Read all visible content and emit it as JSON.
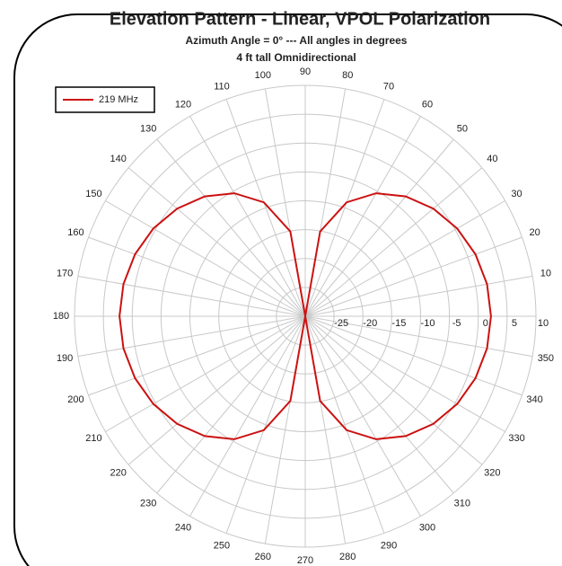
{
  "chart_data": {
    "type": "polar",
    "title": "Elevation Pattern - Linear, VPOL Polarization",
    "subtitle": "Azimuth Angle = 0° ---  All angles in degrees",
    "annotation": "4 ft tall Omnidirectional",
    "theta": [
      0,
      10,
      20,
      30,
      40,
      50,
      60,
      70,
      80,
      90,
      100,
      110,
      120,
      130,
      140,
      150,
      160,
      170,
      180,
      190,
      200,
      210,
      220,
      230,
      240,
      250,
      260,
      270,
      280,
      290,
      300,
      310,
      320,
      330,
      340,
      350
    ],
    "series": [
      {
        "name": "219 MHz",
        "color": "#cc1111",
        "values": [
          2.2,
          2.0,
          1.4,
          0.4,
          -1.0,
          -2.9,
          -5.4,
          -9.0,
          -15.1,
          -30,
          -15.1,
          -9.0,
          -5.4,
          -2.9,
          -1.0,
          0.4,
          1.4,
          2.0,
          2.2,
          2.0,
          1.4,
          0.4,
          -1.0,
          -2.9,
          -5.4,
          -9.0,
          -15.1,
          -30,
          -15.1,
          -9.0,
          -5.4,
          -2.9,
          -1.0,
          0.4,
          1.4,
          2.0
        ]
      }
    ],
    "rlim": [
      -30,
      10
    ],
    "rticks": [
      -25,
      -20,
      -15,
      -10,
      -5,
      0,
      5,
      10
    ],
    "thetaticks": [
      10,
      20,
      30,
      40,
      50,
      60,
      70,
      80,
      90,
      100,
      110,
      120,
      130,
      140,
      150,
      160,
      170,
      180,
      190,
      200,
      210,
      220,
      230,
      240,
      250,
      260,
      270,
      280,
      290,
      300,
      310,
      320,
      330,
      340,
      350
    ],
    "legend": "upper left",
    "grid": true
  }
}
